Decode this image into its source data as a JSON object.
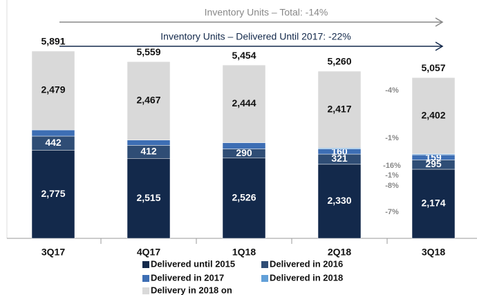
{
  "chart_data": {
    "type": "stacked_bar",
    "categories": [
      "3Q17",
      "4Q17",
      "1Q18",
      "2Q18",
      "3Q18"
    ],
    "series": [
      {
        "name": "Delivered until 2015",
        "color": "#13294b",
        "values": [
          2775,
          2515,
          2526,
          2330,
          2174
        ],
        "value_labels": [
          "2,775",
          "2,515",
          "2,526",
          "2,330",
          "2,174"
        ]
      },
      {
        "name": "Delivered in 2016",
        "color": "#2f4d75",
        "values": [
          442,
          412,
          290,
          321,
          295
        ]
      },
      {
        "name": "Delivered in 2017",
        "color": "#3d6eb4",
        "values": [
          195,
          165,
          194,
          160,
          159
        ]
      },
      {
        "name": "Delivered in 2018",
        "color": "#62a0d8",
        "values": [
          null,
          null,
          null,
          32,
          27
        ]
      },
      {
        "name": "Delivery in 2018 on",
        "color": "#d9d9d9",
        "values": [
          2479,
          2467,
          2444,
          2417,
          2402
        ],
        "value_labels": [
          "2,479",
          "2,467",
          "2,444",
          "2,417",
          "2,402"
        ]
      }
    ],
    "totals": [
      5891,
      5559,
      5454,
      5260,
      5057
    ],
    "total_labels": [
      "5,891",
      "5,559",
      "5,454",
      "5,260",
      "5,057"
    ],
    "arrows": [
      "Inventory Units – Total: -14%",
      "Inventory Units – Delivered Until 2017: -22%"
    ],
    "annotations": [
      "-4%",
      "-1%",
      "-16%",
      "-1%",
      "-8%",
      "-7%"
    ]
  }
}
